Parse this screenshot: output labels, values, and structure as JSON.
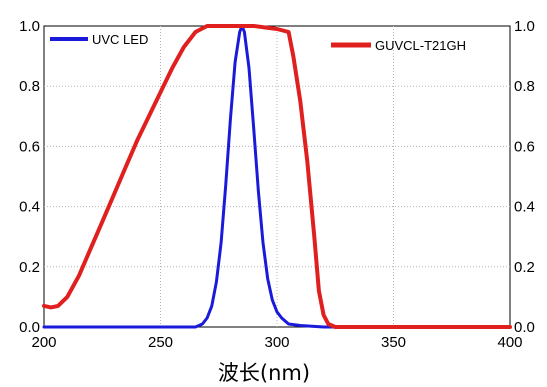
{
  "chart_data": {
    "type": "line",
    "xlabel": "波长(nm)",
    "ylabel": "",
    "xlim": [
      200,
      400
    ],
    "ylim": [
      0,
      1
    ],
    "x_ticks": [
      "200",
      "250",
      "300",
      "350",
      "400"
    ],
    "y_ticks_left": [
      "0.0",
      "0.2",
      "0.4",
      "0.6",
      "0.8",
      "1.0"
    ],
    "y_ticks_right": [
      "0.0",
      "0.2",
      "0.4",
      "0.6",
      "0.8",
      "1.0"
    ],
    "grid": true,
    "legend_placement": "top, split left and right",
    "series": [
      {
        "name": "UVC LED",
        "color": "#1a1adb",
        "x": [
          200,
          250,
          265,
          268,
          270,
          272,
          274,
          276,
          278,
          280,
          282,
          284,
          285,
          286,
          288,
          290,
          292,
          294,
          296,
          298,
          300,
          302,
          305,
          310,
          320,
          330,
          400
        ],
        "y": [
          0.0,
          0.0,
          0.0,
          0.01,
          0.03,
          0.07,
          0.15,
          0.28,
          0.47,
          0.69,
          0.88,
          0.98,
          1.0,
          0.98,
          0.86,
          0.66,
          0.45,
          0.28,
          0.16,
          0.09,
          0.05,
          0.03,
          0.01,
          0.005,
          0.0,
          0.0,
          0.0
        ]
      },
      {
        "name": "GUVCL-T21GH",
        "color": "#e01f1f",
        "x": [
          200,
          203,
          206,
          210,
          215,
          220,
          225,
          230,
          235,
          240,
          245,
          250,
          255,
          260,
          265,
          270,
          275,
          280,
          285,
          290,
          295,
          300,
          305,
          307,
          310,
          313,
          316,
          318,
          320,
          322,
          325,
          330,
          340,
          350,
          400
        ],
        "y": [
          0.07,
          0.065,
          0.07,
          0.1,
          0.17,
          0.26,
          0.35,
          0.44,
          0.53,
          0.62,
          0.7,
          0.78,
          0.86,
          0.93,
          0.98,
          1.0,
          1.0,
          1.0,
          1.0,
          1.0,
          0.995,
          0.99,
          0.98,
          0.9,
          0.75,
          0.55,
          0.3,
          0.12,
          0.04,
          0.01,
          0.0,
          0.0,
          0.0,
          0.0,
          0.0
        ]
      }
    ]
  }
}
